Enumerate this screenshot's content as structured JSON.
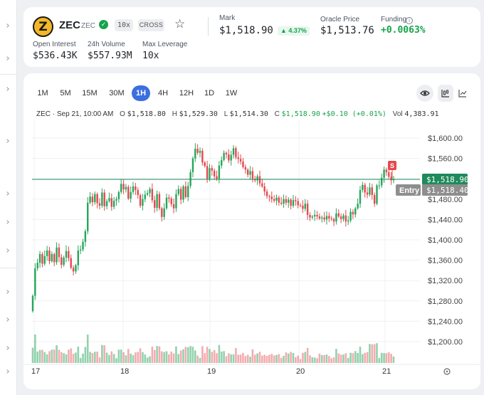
{
  "market": {
    "symbol": "ZEC",
    "sub_symbol": "ZEC",
    "leverage_pill": "10x",
    "margin_mode": "CROSS",
    "logo_glyph": "Z",
    "open_interest_label": "Open Interest",
    "open_interest": "$536.43K",
    "volume_label": "24h Volume",
    "volume": "$557.93M",
    "max_leverage_label": "Max Leverage",
    "max_leverage": "10x",
    "mark_label": "Mark",
    "mark": "$1,518.90",
    "mark_change": "▲ 4.37%",
    "oracle_label": "Oracle Price",
    "oracle": "$1,513.76",
    "funding_label": "Funding",
    "funding": "+0.0063%",
    "icons": [
      "verified-check-icon",
      "star-icon",
      "info-icon"
    ]
  },
  "colors": {
    "up": "#26a65b",
    "down": "#e5484d",
    "accent": "#3b6fe0",
    "funding_positive": "#16a34a"
  },
  "timeframes": [
    "1M",
    "5M",
    "15M",
    "30M",
    "1H",
    "4H",
    "12H",
    "1D",
    "1W"
  ],
  "active_timeframe": "1H",
  "ohlc": {
    "label": "ZEC · Sep 21, 10:00 AM",
    "o_key": "O",
    "o": "$1,518.80",
    "h_key": "H",
    "h": "$1,529.30",
    "l_key": "L",
    "l": "$1,514.30",
    "c_key": "C",
    "c": "$1,518.90",
    "change": "+$0.10 (+0.01%)",
    "vol_key": "Vol",
    "vol": "4,383.91"
  },
  "chart_data": {
    "type": "candlestick",
    "price_axis_ticks": [
      "$1,600.00",
      "$1,560.00",
      "$1,520.00",
      "$1,480.00",
      "$1,440.00",
      "$1,400.00",
      "$1,360.00",
      "$1,320.00",
      "$1,280.00",
      "$1,240.00",
      "$1,200.00"
    ],
    "price_ticks_values": [
      1600,
      1560,
      1520,
      1480,
      1440,
      1400,
      1360,
      1320,
      1280,
      1240,
      1200
    ],
    "time_axis_ticks": [
      "17",
      "18",
      "19",
      "20",
      "21"
    ],
    "y_range": [
      1180,
      1620
    ],
    "current_price_label": "$1,518.90",
    "current_price": 1518.9,
    "entry_label": "Entry",
    "entry_price_label": "$1,518.40",
    "entry_price": 1518.4,
    "trade_marker": "S",
    "closes": [
      1290,
      1344,
      1355,
      1372,
      1353,
      1368,
      1379,
      1358,
      1372,
      1356,
      1385,
      1366,
      1351,
      1365,
      1378,
      1364,
      1345,
      1338,
      1350,
      1379,
      1381,
      1396,
      1417,
      1473,
      1485,
      1474,
      1490,
      1472,
      1467,
      1493,
      1466,
      1476,
      1482,
      1465,
      1477,
      1480,
      1494,
      1510,
      1499,
      1504,
      1481,
      1494,
      1505,
      1498,
      1488,
      1467,
      1480,
      1489,
      1492,
      1500,
      1478,
      1463,
      1490,
      1462,
      1445,
      1462,
      1483,
      1481,
      1470,
      1462,
      1490,
      1500,
      1479,
      1505,
      1484,
      1506,
      1533,
      1560,
      1579,
      1571,
      1575,
      1552,
      1545,
      1520,
      1541,
      1536,
      1525,
      1520,
      1546,
      1557,
      1571,
      1568,
      1556,
      1567,
      1580,
      1562,
      1559,
      1554,
      1543,
      1538,
      1528,
      1535,
      1520,
      1517,
      1525,
      1511,
      1505,
      1495,
      1486,
      1485,
      1480,
      1477,
      1483,
      1473,
      1471,
      1480,
      1473,
      1479,
      1467,
      1478,
      1476,
      1468,
      1467,
      1461,
      1471,
      1449,
      1444,
      1446,
      1449,
      1446,
      1442,
      1444,
      1440,
      1447,
      1442,
      1441,
      1436,
      1452,
      1446,
      1441,
      1448,
      1436,
      1438,
      1455,
      1450,
      1462,
      1471,
      1498,
      1508,
      1493,
      1489,
      1503,
      1488,
      1471,
      1507,
      1507,
      1522,
      1538,
      1533,
      1524,
      1517,
      1518.9
    ],
    "volume_bar_count": 151
  },
  "footer": {
    "settings_icon": "settings-icon"
  }
}
